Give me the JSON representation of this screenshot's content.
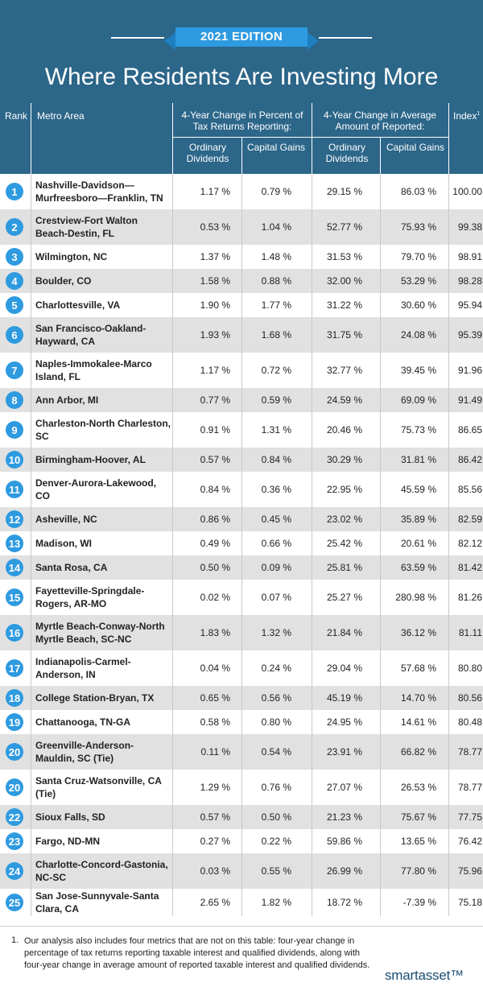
{
  "edition": "2021 EDITION",
  "title": "Where Residents Are Investing More",
  "headers": {
    "rank": "Rank",
    "metro": "Metro Area",
    "group1": "4-Year Change in Percent of Tax Returns Reporting:",
    "group2": "4-Year Change in Average Amount of Reported:",
    "index": "Index",
    "index_sup": "1",
    "ordinary": "Ordinary Dividends",
    "capital": "Capital Gains"
  },
  "rows": [
    {
      "rank": "1",
      "metro": "Nashville-Davidson—Murfreesboro—Franklin, TN",
      "p_ord": "1.17 %",
      "p_cap": "0.79 %",
      "a_ord": "29.15 %",
      "a_cap": "86.03 %",
      "index": "100.00"
    },
    {
      "rank": "2",
      "metro": "Crestview-Fort Walton Beach-Destin, FL",
      "p_ord": "0.53 %",
      "p_cap": "1.04 %",
      "a_ord": "52.77 %",
      "a_cap": "75.93 %",
      "index": "99.38"
    },
    {
      "rank": "3",
      "metro": "Wilmington, NC",
      "p_ord": "1.37 %",
      "p_cap": "1.48 %",
      "a_ord": "31.53 %",
      "a_cap": "79.70 %",
      "index": "98.91"
    },
    {
      "rank": "4",
      "metro": "Boulder, CO",
      "p_ord": "1.58 %",
      "p_cap": "0.88 %",
      "a_ord": "32.00 %",
      "a_cap": "53.29 %",
      "index": "98.28"
    },
    {
      "rank": "5",
      "metro": "Charlottesville, VA",
      "p_ord": "1.90 %",
      "p_cap": "1.77 %",
      "a_ord": "31.22 %",
      "a_cap": "30.60 %",
      "index": "95.94"
    },
    {
      "rank": "6",
      "metro": "San Francisco-Oakland-Hayward, CA",
      "p_ord": "1.93 %",
      "p_cap": "1.68 %",
      "a_ord": "31.75 %",
      "a_cap": "24.08 %",
      "index": "95.39"
    },
    {
      "rank": "7",
      "metro": "Naples-Immokalee-Marco Island, FL",
      "p_ord": "1.17 %",
      "p_cap": "0.72 %",
      "a_ord": "32.77 %",
      "a_cap": "39.45 %",
      "index": "91.96"
    },
    {
      "rank": "8",
      "metro": "Ann Arbor, MI",
      "p_ord": "0.77 %",
      "p_cap": "0.59 %",
      "a_ord": "24.59 %",
      "a_cap": "69.09 %",
      "index": "91.49"
    },
    {
      "rank": "9",
      "metro": "Charleston-North Charleston, SC",
      "p_ord": "0.91 %",
      "p_cap": "1.31 %",
      "a_ord": "20.46 %",
      "a_cap": "75.73 %",
      "index": "86.65"
    },
    {
      "rank": "10",
      "metro": "Birmingham-Hoover, AL",
      "p_ord": "0.57 %",
      "p_cap": "0.84 %",
      "a_ord": "30.29 %",
      "a_cap": "31.81 %",
      "index": "86.42"
    },
    {
      "rank": "11",
      "metro": "Denver-Aurora-Lakewood, CO",
      "p_ord": "0.84 %",
      "p_cap": "0.36 %",
      "a_ord": "22.95 %",
      "a_cap": "45.59 %",
      "index": "85.56"
    },
    {
      "rank": "12",
      "metro": "Asheville, NC",
      "p_ord": "0.86 %",
      "p_cap": "0.45 %",
      "a_ord": "23.02 %",
      "a_cap": "35.89 %",
      "index": "82.59"
    },
    {
      "rank": "13",
      "metro": "Madison, WI",
      "p_ord": "0.49 %",
      "p_cap": "0.66 %",
      "a_ord": "25.42 %",
      "a_cap": "20.61 %",
      "index": "82.12"
    },
    {
      "rank": "14",
      "metro": "Santa Rosa, CA",
      "p_ord": "0.50 %",
      "p_cap": "0.09 %",
      "a_ord": "25.81 %",
      "a_cap": "63.59 %",
      "index": "81.42"
    },
    {
      "rank": "15",
      "metro": "Fayetteville-Springdale-Rogers, AR-MO",
      "p_ord": "0.02 %",
      "p_cap": "0.07 %",
      "a_ord": "25.27 %",
      "a_cap": "280.98 %",
      "index": "81.26"
    },
    {
      "rank": "16",
      "metro": "Myrtle Beach-Conway-North Myrtle Beach, SC-NC",
      "p_ord": "1.83 %",
      "p_cap": "1.32 %",
      "a_ord": "21.84 %",
      "a_cap": "36.12 %",
      "index": "81.11"
    },
    {
      "rank": "17",
      "metro": "Indianapolis-Carmel-Anderson, IN",
      "p_ord": "0.04 %",
      "p_cap": "0.24 %",
      "a_ord": "29.04 %",
      "a_cap": "57.68 %",
      "index": "80.80"
    },
    {
      "rank": "18",
      "metro": "College Station-Bryan, TX",
      "p_ord": "0.65 %",
      "p_cap": "0.56 %",
      "a_ord": "45.19 %",
      "a_cap": "14.70 %",
      "index": "80.56"
    },
    {
      "rank": "19",
      "metro": "Chattanooga, TN-GA",
      "p_ord": "0.58 %",
      "p_cap": "0.80 %",
      "a_ord": "24.95 %",
      "a_cap": "14.61 %",
      "index": "80.48"
    },
    {
      "rank": "20",
      "metro": "Greenville-Anderson-Mauldin, SC (Tie)",
      "p_ord": "0.11 %",
      "p_cap": "0.54 %",
      "a_ord": "23.91 %",
      "a_cap": "66.82 %",
      "index": "78.77"
    },
    {
      "rank": "20",
      "metro": "Santa Cruz-Watsonville, CA (Tie)",
      "p_ord": "1.29 %",
      "p_cap": "0.76 %",
      "a_ord": "27.07 %",
      "a_cap": "26.53 %",
      "index": "78.77"
    },
    {
      "rank": "22",
      "metro": "Sioux Falls, SD",
      "p_ord": "0.57 %",
      "p_cap": "0.50 %",
      "a_ord": "21.23 %",
      "a_cap": "75.67 %",
      "index": "77.75"
    },
    {
      "rank": "23",
      "metro": "Fargo, ND-MN",
      "p_ord": "0.27 %",
      "p_cap": "0.22 %",
      "a_ord": "59.86 %",
      "a_cap": "13.65 %",
      "index": "76.42"
    },
    {
      "rank": "24",
      "metro": "Charlotte-Concord-Gastonia, NC-SC",
      "p_ord": "0.03 %",
      "p_cap": "0.55 %",
      "a_ord": "26.99 %",
      "a_cap": "77.80 %",
      "index": "75.96"
    },
    {
      "rank": "25",
      "metro": "San Jose-Sunnyvale-Santa Clara, CA",
      "p_ord": "2.65 %",
      "p_cap": "1.82 %",
      "a_ord": "18.72 %",
      "a_cap": "-7.39 %",
      "index": "75.18"
    }
  ],
  "footnote": {
    "number": "1.",
    "text": "Our analysis also includes four metrics that are not on this table: four-year change in percentage of tax returns reporting taxable interest and qualified dividends, along with four-year change in average amount of reported taxable interest and qualified dividends."
  },
  "logo": "smartasset™",
  "colors": {
    "banner": "#2c6689",
    "accent": "#2e9ae0",
    "row_alt": "#e1e1e1"
  }
}
